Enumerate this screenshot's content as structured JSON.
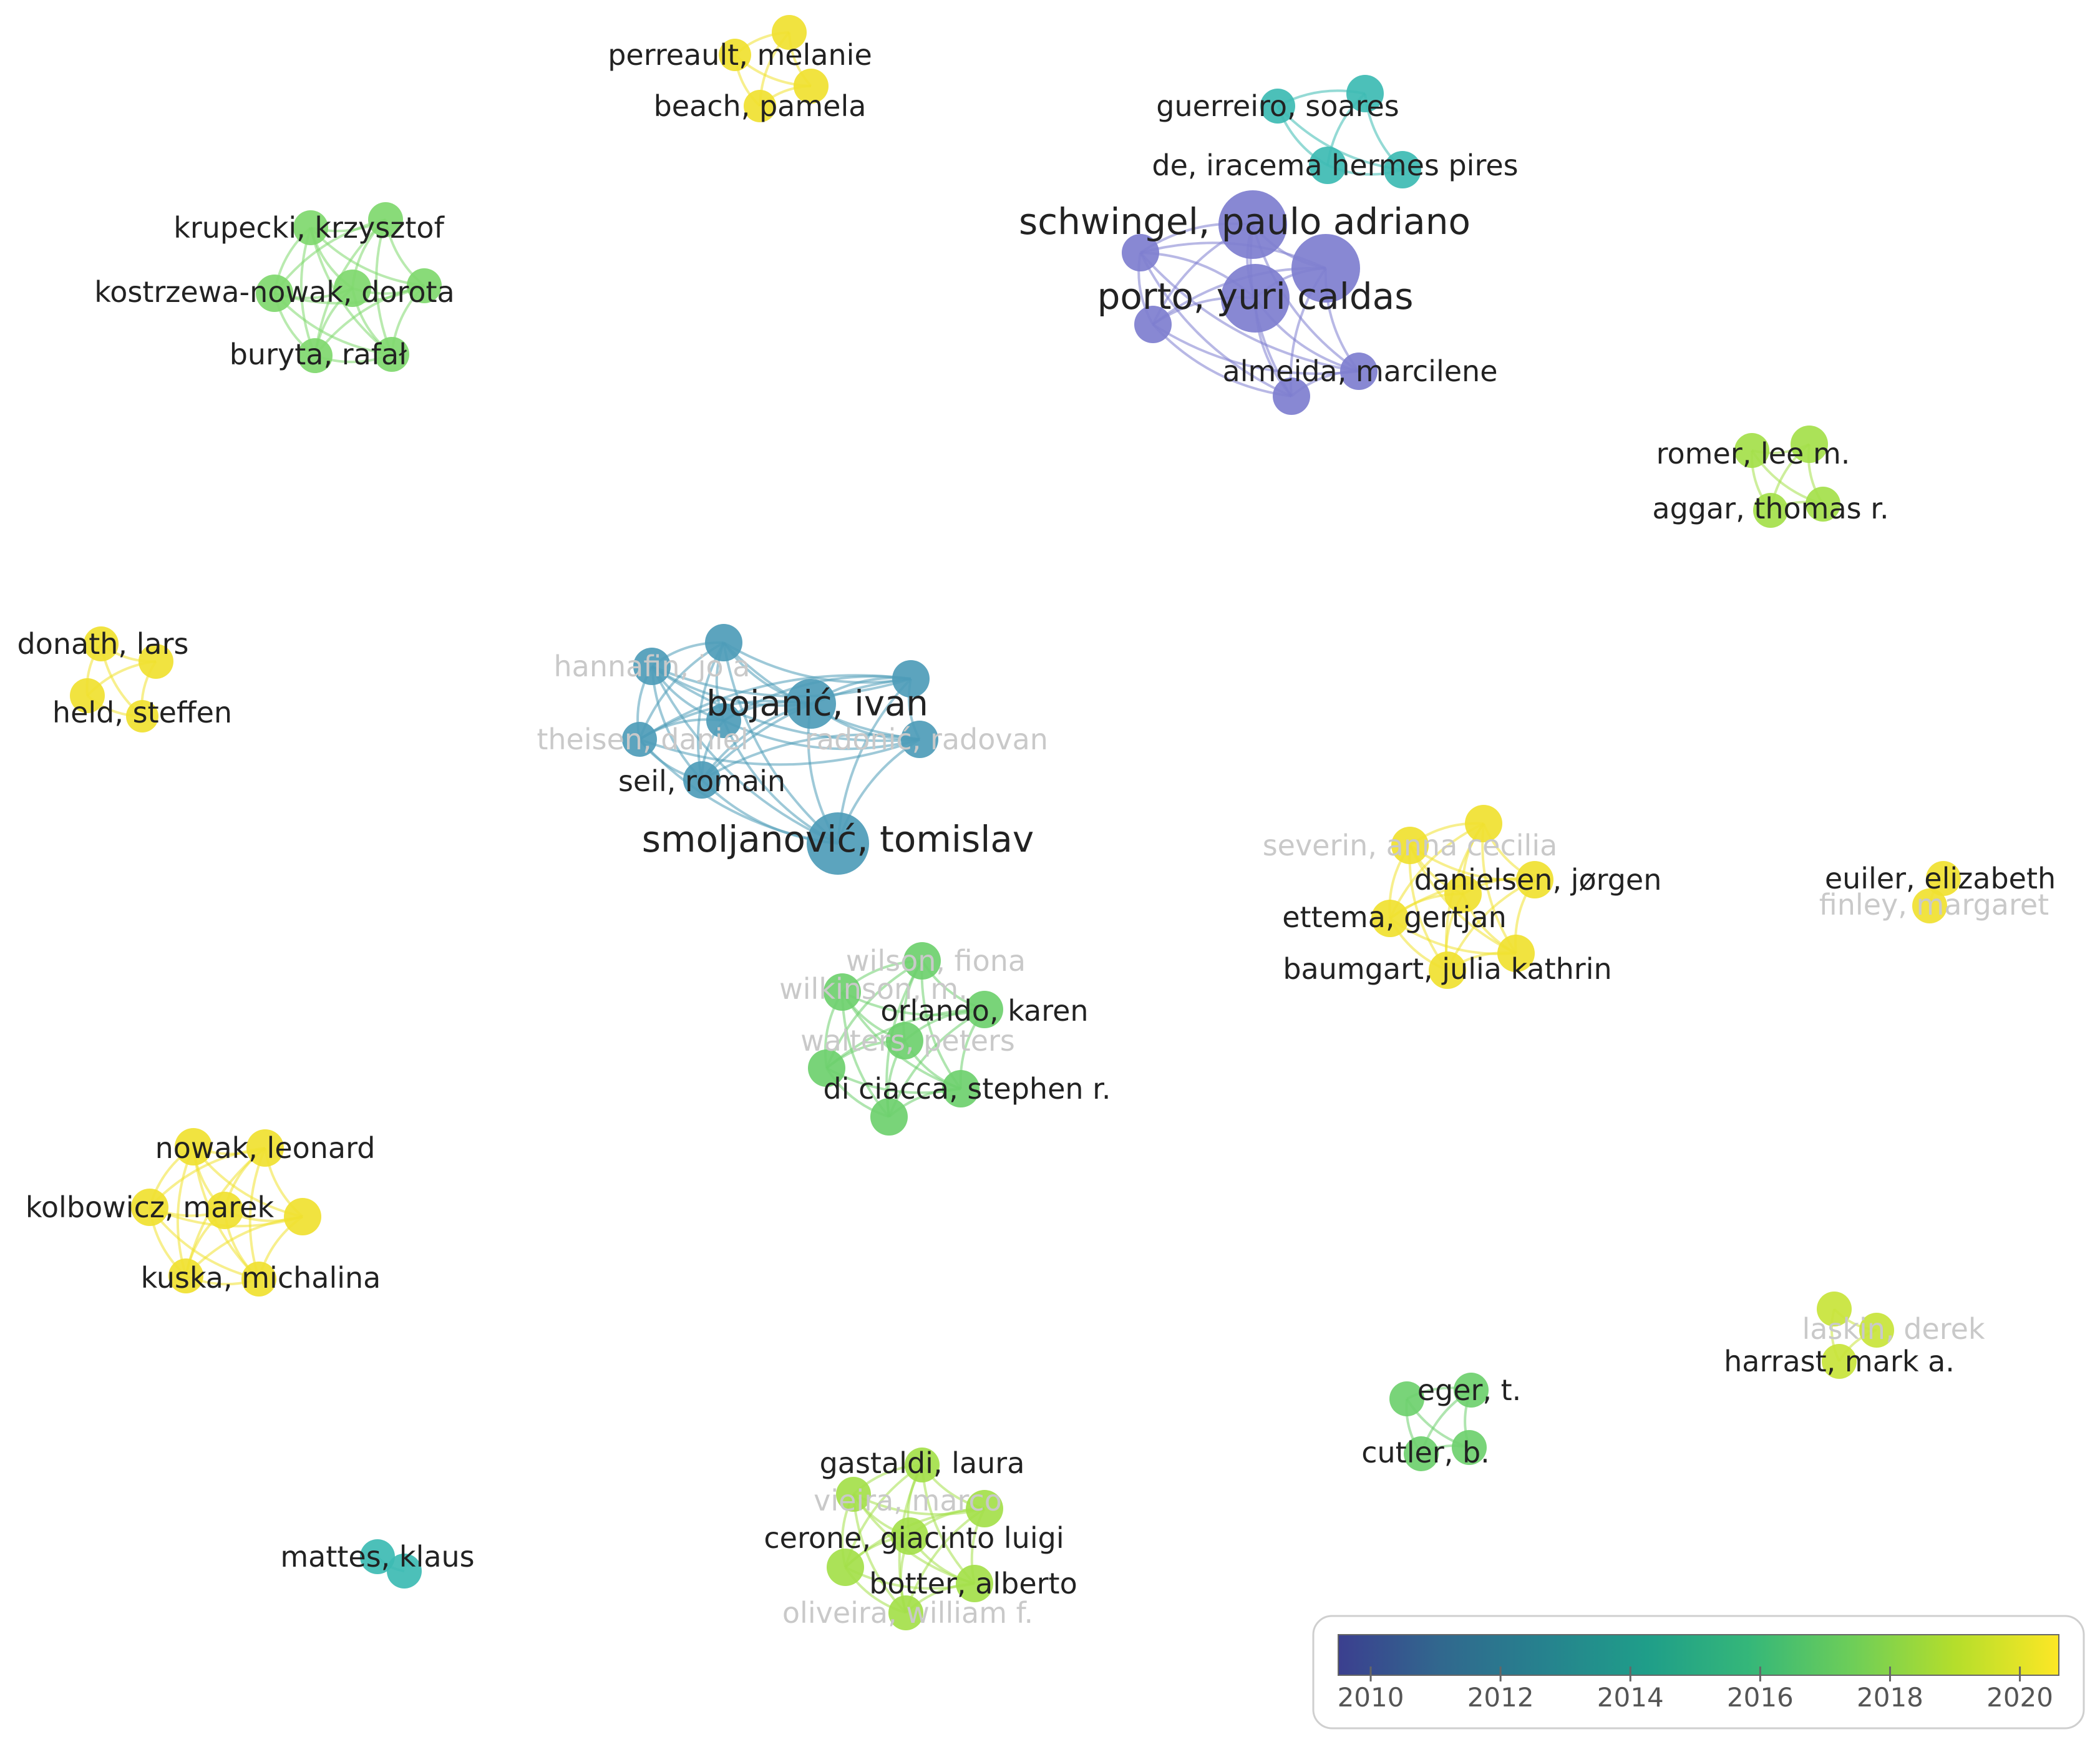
{
  "legend": {
    "ticks": [
      "2010",
      "2012",
      "2014",
      "2016",
      "2018",
      "2020"
    ],
    "tick_years": [
      2010,
      2012,
      2014,
      2016,
      2018,
      2020
    ],
    "range": [
      2009.5,
      2020.6
    ],
    "colors": [
      "#3b3f8f",
      "#31688e",
      "#26828e",
      "#1f9e89",
      "#35b779",
      "#6ece58",
      "#b5de2b",
      "#fde725"
    ]
  },
  "clusters": [
    {
      "id": "perreault",
      "color": "#f0e130",
      "labels": [
        {
          "text": "perreault, melanie",
          "faded": false
        },
        {
          "text": "beach, pamela",
          "faded": false
        }
      ]
    },
    {
      "id": "guerreiro",
      "color": "#3dbbb3",
      "labels": [
        {
          "text": "guerreiro, soares",
          "faded": false
        },
        {
          "text": "de, iracema hermes pires",
          "faded": false
        }
      ]
    },
    {
      "id": "schwingel",
      "color": "#7e7ecf",
      "labels": [
        {
          "text": "schwingel, paulo adriano",
          "faded": false
        },
        {
          "text": "porto, yuri caldas",
          "faded": false
        },
        {
          "text": "almeida, marcilene",
          "faded": false
        }
      ]
    },
    {
      "id": "krupecki",
      "color": "#7fd86e",
      "labels": [
        {
          "text": "krupecki, krzysztof",
          "faded": false
        },
        {
          "text": "kostrzewa-nowak, dorota",
          "faded": false
        },
        {
          "text": "buryta, rafał",
          "faded": false
        }
      ]
    },
    {
      "id": "romer",
      "color": "#a4e04a",
      "labels": [
        {
          "text": "romer, lee m.",
          "faded": false
        },
        {
          "text": "aggar, thomas r.",
          "faded": false
        }
      ]
    },
    {
      "id": "donath",
      "color": "#f0e130",
      "labels": [
        {
          "text": "donath, lars",
          "faded": false
        },
        {
          "text": "held, steffen",
          "faded": false
        }
      ]
    },
    {
      "id": "bojanic",
      "color": "#4e9cb8",
      "labels": [
        {
          "text": "hannafin, jo a",
          "faded": true
        },
        {
          "text": "bojanić, ivan",
          "faded": false
        },
        {
          "text": "theisen, daniel",
          "faded": true
        },
        {
          "text": "radonić, radovan",
          "faded": true
        },
        {
          "text": "seil, romain",
          "faded": false
        },
        {
          "text": "smoljanović, tomislav",
          "faded": false
        }
      ]
    },
    {
      "id": "orlando",
      "color": "#6ed06e",
      "labels": [
        {
          "text": "wilson, fiona",
          "faded": true
        },
        {
          "text": "wilkinson, m.",
          "faded": true
        },
        {
          "text": "orlando, karen",
          "faded": false
        },
        {
          "text": "walters, peters",
          "faded": true
        },
        {
          "text": "di ciacca, stephen r.",
          "faded": false
        }
      ]
    },
    {
      "id": "danielsen",
      "color": "#f0e130",
      "labels": [
        {
          "text": "severin, anna cecilia",
          "faded": true
        },
        {
          "text": "danielsen, jørgen",
          "faded": false
        },
        {
          "text": "ettema, gertjan",
          "faded": false
        },
        {
          "text": "baumgart, julia kathrin",
          "faded": false
        }
      ]
    },
    {
      "id": "euiler",
      "color": "#f0e130",
      "labels": [
        {
          "text": "euiler, elizabeth",
          "faded": false
        },
        {
          "text": "finley, margaret",
          "faded": true
        }
      ]
    },
    {
      "id": "nowak",
      "color": "#f0e130",
      "labels": [
        {
          "text": "nowak, leonard",
          "faded": false
        },
        {
          "text": "kolbowicz, marek",
          "faded": false
        },
        {
          "text": "kuska, michalina",
          "faded": false
        }
      ]
    },
    {
      "id": "harrast",
      "color": "#c8e43a",
      "labels": [
        {
          "text": "laskin, derek",
          "faded": true
        },
        {
          "text": "harrast, mark a.",
          "faded": false
        }
      ]
    },
    {
      "id": "eger",
      "color": "#6ed06e",
      "labels": [
        {
          "text": "eger, t.",
          "faded": false
        },
        {
          "text": "cutler, b.",
          "faded": false
        }
      ]
    },
    {
      "id": "gastaldi",
      "color": "#a4e04a",
      "labels": [
        {
          "text": "gastaldi, laura",
          "faded": false
        },
        {
          "text": "vieira, marco",
          "faded": true
        },
        {
          "text": "cerone, giacinto luigi",
          "faded": false
        },
        {
          "text": "botter, alberto",
          "faded": false
        },
        {
          "text": "oliveira, william f.",
          "faded": true
        }
      ]
    },
    {
      "id": "mattes",
      "color": "#3dbbb3",
      "labels": [
        {
          "text": "mattes, klaus",
          "faded": false
        }
      ]
    }
  ]
}
